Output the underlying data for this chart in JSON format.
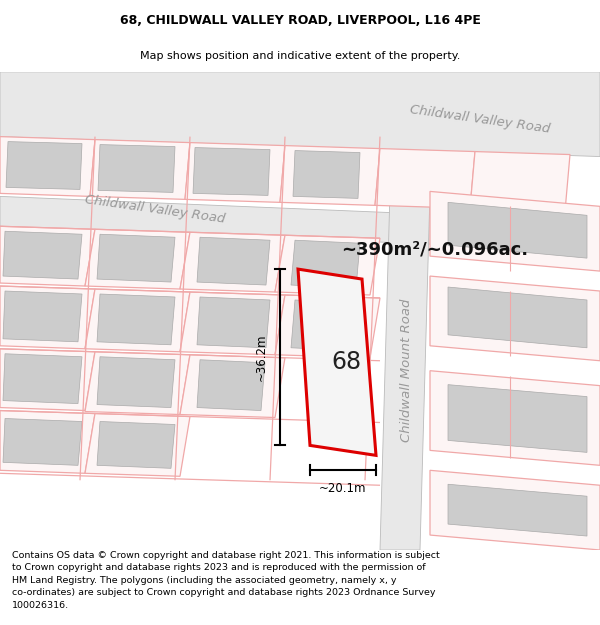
{
  "title_line1": "68, CHILDWALL VALLEY ROAD, LIVERPOOL, L16 4PE",
  "title_line2": "Map shows position and indicative extent of the property.",
  "area_text": "~390m²/~0.096ac.",
  "dim_width": "~20.1m",
  "dim_height": "~36.2m",
  "property_label": "68",
  "road_label_upper": "Childwall Valley Road",
  "road_label_lower": "Childwall Valley Road",
  "road_label_right": "Childwall Mount Road",
  "footer_text": "Contains OS data © Crown copyright and database right 2021. This information is subject\nto Crown copyright and database rights 2023 and is reproduced with the permission of\nHM Land Registry. The polygons (including the associated geometry, namely x, y\nco-ordinates) are subject to Crown copyright and database rights 2023 Ordnance Survey\n100026316.",
  "bg_color": "#ffffff",
  "map_bg": "#ffffff",
  "road_fill": "#e8e8e8",
  "plot_outline_color": "#dd0000",
  "plot_fill_color": "#f5f5f5",
  "building_fill": "#cccccc",
  "road_line_color": "#bbbbbb",
  "pink_line_color": "#f0a8a8",
  "pink_fill": "#fdf5f5",
  "dim_line_color": "#000000",
  "title_fontsize": 9.0,
  "subtitle_fontsize": 8.0,
  "footer_fontsize": 6.8,
  "label_fontsize": 8.5,
  "area_fontsize": 13,
  "road_label_fontsize": 9.5,
  "property_label_fontsize": 17,
  "map_border_color": "#cccccc"
}
